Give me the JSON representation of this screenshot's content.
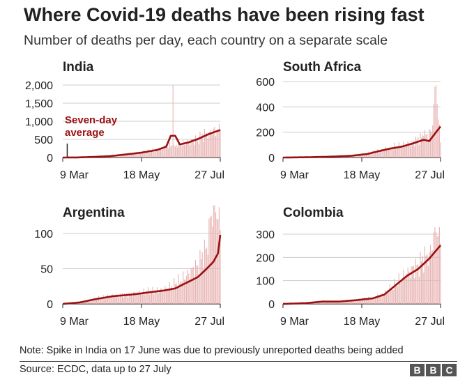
{
  "title": "Where Covid-19 deaths have been rising fast",
  "subtitle": "Number of deaths per day, each country on a separate scale",
  "note": "Note: Spike in India on 17 June was due to previously unreported deaths being added",
  "source": "Source: ECDC, data up to 27 July",
  "logo_letters": [
    "B",
    "B",
    "C"
  ],
  "colors": {
    "average": "#9a1010",
    "bars": "#e8b4b4",
    "grid": "#cccccc",
    "axis": "#222222"
  },
  "chart_data": [
    {
      "type": "bar+line",
      "title": "India",
      "xlabel": "",
      "ylabel": "",
      "x_ticks": [
        "9 Mar",
        "18 May",
        "27 Jul"
      ],
      "y_ticks": [
        0,
        500,
        1000,
        1500,
        2000
      ],
      "y_tick_labels": [
        "0",
        "500",
        "1,000",
        "1,500",
        "2,000"
      ],
      "ylim": [
        0,
        2000
      ],
      "annotation": {
        "text": [
          "Seven-day",
          "average"
        ],
        "points_to_day": 4
      },
      "bar_series": {
        "name": "Daily deaths",
        "anchor_days": [
          0,
          14,
          28,
          42,
          56,
          70,
          84,
          97,
          98,
          99,
          105,
          112,
          120,
          130,
          140
        ],
        "anchor_values": [
          0,
          3,
          20,
          40,
          90,
          140,
          220,
          340,
          2000,
          340,
          360,
          420,
          540,
          700,
          760
        ]
      },
      "average_series": {
        "name": "Seven-day average",
        "anchor_days": [
          0,
          14,
          28,
          42,
          56,
          70,
          84,
          92,
          96,
          100,
          104,
          112,
          120,
          130,
          140
        ],
        "anchor_values": [
          0,
          3,
          18,
          38,
          85,
          135,
          210,
          300,
          600,
          600,
          360,
          420,
          510,
          650,
          760
        ]
      }
    },
    {
      "type": "bar+line",
      "title": "South Africa",
      "xlabel": "",
      "ylabel": "",
      "x_ticks": [
        "9 Mar",
        "18 May",
        "27 Jul"
      ],
      "y_ticks": [
        0,
        200,
        400,
        600
      ],
      "y_tick_labels": [
        "0",
        "200",
        "400",
        "600"
      ],
      "ylim": [
        0,
        600
      ],
      "bar_series": {
        "name": "Daily deaths",
        "anchor_days": [
          0,
          20,
          40,
          60,
          75,
          85,
          95,
          105,
          115,
          125,
          132,
          136,
          138,
          140
        ],
        "anchor_values": [
          0,
          2,
          6,
          15,
          30,
          55,
          80,
          95,
          120,
          170,
          200,
          570,
          300,
          120
        ]
      },
      "average_series": {
        "name": "Seven-day average",
        "anchor_days": [
          0,
          20,
          40,
          60,
          75,
          85,
          95,
          105,
          115,
          125,
          130,
          136,
          140
        ],
        "anchor_values": [
          0,
          2,
          6,
          13,
          28,
          50,
          70,
          85,
          110,
          140,
          130,
          200,
          245
        ]
      }
    },
    {
      "type": "bar+line",
      "title": "Argentina",
      "xlabel": "",
      "ylabel": "",
      "x_ticks": [
        "9 Mar",
        "18 May",
        "27 Jul"
      ],
      "y_ticks": [
        0,
        50,
        100
      ],
      "y_tick_labels": [
        "0",
        "50",
        "100"
      ],
      "ylim": [
        0,
        140
      ],
      "bar_series": {
        "name": "Daily deaths",
        "anchor_days": [
          0,
          15,
          30,
          45,
          60,
          75,
          90,
          100,
          110,
          120,
          128,
          132,
          136,
          140
        ],
        "anchor_values": [
          0,
          2,
          8,
          12,
          14,
          18,
          20,
          28,
          40,
          55,
          80,
          125,
          130,
          105
        ]
      },
      "average_series": {
        "name": "Seven-day average",
        "anchor_days": [
          0,
          15,
          30,
          45,
          60,
          75,
          90,
          100,
          110,
          120,
          128,
          134,
          138,
          140
        ],
        "anchor_values": [
          0,
          2,
          7,
          11,
          13,
          16,
          19,
          22,
          30,
          38,
          50,
          60,
          72,
          98
        ]
      }
    },
    {
      "type": "bar+line",
      "title": "Colombia",
      "xlabel": "",
      "ylabel": "",
      "x_ticks": [
        "9 Mar",
        "18 May",
        "27 Jul"
      ],
      "y_ticks": [
        0,
        100,
        200,
        300
      ],
      "y_tick_labels": [
        "0",
        "100",
        "200",
        "300"
      ],
      "ylim": [
        0,
        330
      ],
      "bar_series": {
        "name": "Daily deaths",
        "anchor_days": [
          0,
          20,
          35,
          50,
          65,
          80,
          90,
          100,
          110,
          120,
          130,
          136,
          140
        ],
        "anchor_values": [
          0,
          3,
          12,
          10,
          18,
          25,
          45,
          85,
          130,
          170,
          220,
          310,
          260
        ]
      },
      "average_series": {
        "name": "Seven-day average",
        "anchor_days": [
          0,
          20,
          35,
          50,
          65,
          80,
          90,
          100,
          110,
          120,
          130,
          140
        ],
        "anchor_values": [
          0,
          3,
          10,
          10,
          16,
          24,
          40,
          80,
          120,
          150,
          195,
          252
        ]
      }
    }
  ]
}
